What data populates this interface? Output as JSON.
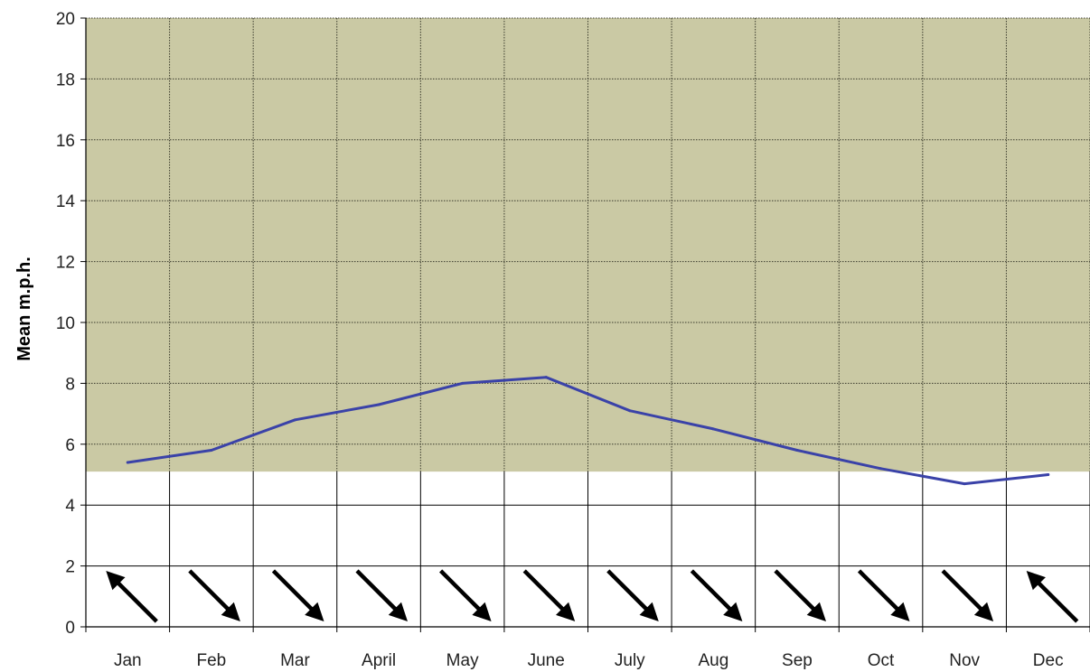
{
  "chart_data": {
    "type": "line",
    "title": "",
    "xlabel": "",
    "ylabel": "Mean m.p.h.",
    "categories": [
      "Jan",
      "Feb",
      "Mar",
      "April",
      "May",
      "June",
      "July",
      "Aug",
      "Sep",
      "Oct",
      "Nov",
      "Dec"
    ],
    "series": [
      {
        "values": [
          5.4,
          5.8,
          6.8,
          7.3,
          8.0,
          8.2,
          7.1,
          6.5,
          5.8,
          5.2,
          4.7,
          5.0
        ],
        "color": "#3a42a8"
      }
    ],
    "wind_direction_icons": [
      "arrow-up-left-icon",
      "arrow-down-right-icon",
      "arrow-down-right-icon",
      "arrow-down-right-icon",
      "arrow-down-right-icon",
      "arrow-down-right-icon",
      "arrow-down-right-icon",
      "arrow-down-right-icon",
      "arrow-down-right-icon",
      "arrow-down-right-icon",
      "arrow-down-right-icon",
      "arrow-up-left-icon"
    ],
    "ylim": [
      0,
      20
    ],
    "yticks": [
      "0",
      "2",
      "4",
      "6",
      "8",
      "10",
      "12",
      "14",
      "16",
      "18",
      "20"
    ],
    "shaded_band": {
      "from": 5.1,
      "to": 20,
      "color": "#cac9a4"
    },
    "grid": true,
    "legend": "none"
  }
}
